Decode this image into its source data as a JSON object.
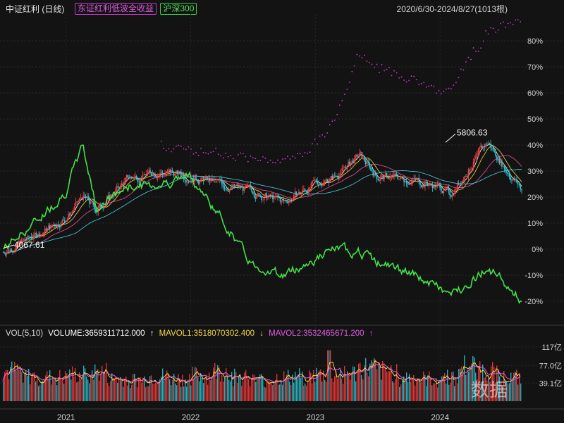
{
  "header": {
    "title": "中证红利 (日线)",
    "legend1": "东证红利低波全收益",
    "legend2": "沪深300",
    "range": "2020/6/30-2024/8/27(1013根)"
  },
  "volume_header": {
    "label": "VOL(5,10)",
    "volume": "VOLUME:3659311712.000",
    "arrow1": "↑",
    "mavol1": "MAVOL1:3518070302.400",
    "arrow2": "↓",
    "mavol2": "MAVOL2:3532465671.200",
    "arrow3": "↑"
  },
  "annotations": {
    "high": "5806.63",
    "low": "4067.61"
  },
  "watermark": "数据",
  "colors": {
    "background": "#131313",
    "candle_up": "#ff3b3b",
    "candle_down": "#2ec8d6",
    "dividend_index": "#ff3b3b",
    "low_vol_total_return": "#d13ad6",
    "csi300": "#44e04a",
    "ma1": "#ffffff",
    "ma2": "#f6d84c",
    "ma3": "#e8559c",
    "ma4": "#47d3e6"
  },
  "chart_data": [
    {
      "type": "line",
      "title": "中证红利 (日线)",
      "y_axis_ticks": [
        "80%",
        "70%",
        "60%",
        "50%",
        "40%",
        "30%",
        "20%",
        "10%",
        "0%",
        "-10%",
        "-20%"
      ],
      "x_axis_ticks": [
        "2021",
        "2022",
        "2023",
        "2024"
      ],
      "ylim": [
        -25,
        90
      ],
      "x": [
        "2020-06-30",
        "2020-09-30",
        "2020-12-31",
        "2021-02-19",
        "2021-03-31",
        "2021-06-30",
        "2021-09-30",
        "2021-12-31",
        "2022-03-31",
        "2022-06-30",
        "2022-09-30",
        "2022-12-31",
        "2023-02-28",
        "2023-05-10",
        "2023-06-30",
        "2023-09-30",
        "2023-12-31",
        "2024-01-31",
        "2024-03-31",
        "2024-05-20",
        "2024-06-30",
        "2024-08-27"
      ],
      "series": [
        {
          "name": "中证红利",
          "values": [
            -1,
            5,
            12,
            20,
            15,
            27,
            30,
            28,
            25,
            22,
            18,
            25,
            28,
            36,
            28,
            27,
            24,
            21,
            32,
            41,
            33,
            23
          ]
        },
        {
          "name": "东证红利低波全收益",
          "values": [
            null,
            null,
            null,
            null,
            null,
            null,
            40,
            38,
            37,
            35,
            33,
            40,
            50,
            75,
            70,
            66,
            60,
            62,
            74,
            84,
            86,
            88
          ]
        },
        {
          "name": "沪深300",
          "values": [
            0,
            10,
            22,
            40,
            16,
            24,
            25,
            28,
            12,
            -6,
            -10,
            -4,
            0,
            -1,
            -5,
            -9,
            -15,
            -18,
            -12,
            -7,
            -12,
            -20
          ]
        }
      ]
    },
    {
      "type": "bar",
      "title": "VOL(5,10)",
      "y_axis_ticks": [
        "117亿",
        "77.0亿",
        "39.1亿"
      ],
      "x_axis_ticks": [
        "2021",
        "2022",
        "2023",
        "2024"
      ],
      "unit": "亿",
      "ylim": [
        0,
        117
      ],
      "x": [
        "2020-07",
        "2020-09",
        "2020-11",
        "2021-01",
        "2021-03",
        "2021-05",
        "2021-07",
        "2021-09",
        "2021-11",
        "2022-01",
        "2022-03",
        "2022-05",
        "2022-07",
        "2022-09",
        "2022-11",
        "2023-01",
        "2023-03",
        "2023-05",
        "2023-07",
        "2023-09",
        "2023-11",
        "2024-01",
        "2024-03",
        "2024-05",
        "2024-07"
      ],
      "values": [
        70,
        58,
        55,
        62,
        68,
        52,
        50,
        58,
        52,
        60,
        70,
        58,
        50,
        55,
        58,
        62,
        65,
        78,
        70,
        55,
        52,
        58,
        82,
        70,
        55
      ]
    }
  ]
}
